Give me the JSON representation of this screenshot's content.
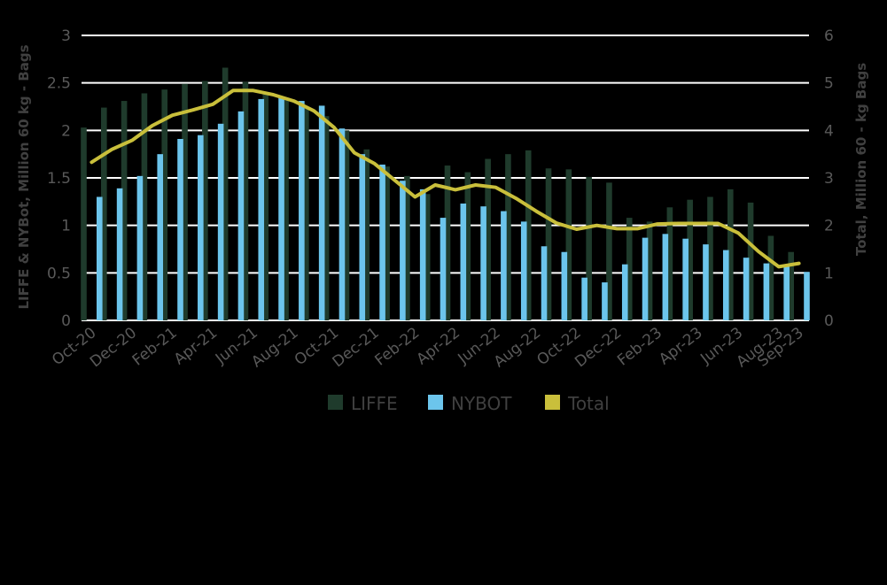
{
  "chart_data": {
    "type": "bar",
    "x": [
      "Oct-20",
      "Nov-20",
      "Dec-20",
      "Jan-21",
      "Feb-21",
      "Mar-21",
      "Apr-21",
      "May-21",
      "Jun-21",
      "Jul-21",
      "Aug-21",
      "Sep-21",
      "Oct-21",
      "Nov-21",
      "Dec-21",
      "Jan-22",
      "Feb-22",
      "Mar-22",
      "Apr-22",
      "May-22",
      "Jun-22",
      "Jul-22",
      "Aug-22",
      "Sep-22",
      "Oct-22",
      "Nov-22",
      "Dec-22",
      "Jan-23",
      "Feb-23",
      "Mar-23",
      "Apr-23",
      "May-23",
      "Jun-23",
      "Jul-23",
      "Aug-23",
      "Sep-23"
    ],
    "x_tick_labels": [
      "Oct-20",
      "Dec-20",
      "Feb-21",
      "Apr-21",
      "Jun-21",
      "Aug-21",
      "Oct-21",
      "Dec-21",
      "Feb-22",
      "Apr-22",
      "Jun-22",
      "Aug-22",
      "Oct-22",
      "Dec-22",
      "Feb-23",
      "Apr-23",
      "Jun-23",
      "Aug-23",
      "Sep-23"
    ],
    "series": [
      {
        "name": "LIFFE",
        "type": "bar",
        "axis": "left",
        "color": "#1f3b2c",
        "values": [
          2.03,
          2.24,
          2.31,
          2.39,
          2.43,
          2.49,
          2.52,
          2.66,
          2.51,
          2.38,
          2.32,
          2.25,
          2.15,
          2.0,
          1.8,
          1.62,
          1.52,
          1.33,
          1.63,
          1.56,
          1.7,
          1.75,
          1.79,
          1.6,
          1.59,
          1.51,
          1.45,
          1.08,
          1.04,
          1.19,
          1.27,
          1.3,
          1.38,
          1.24,
          0.89,
          0.72
        ]
      },
      {
        "name": "NYBOT",
        "type": "bar",
        "axis": "left",
        "color": "#6cc5ec",
        "values": [
          1.3,
          1.39,
          1.52,
          1.75,
          1.91,
          1.95,
          2.07,
          2.2,
          2.33,
          2.35,
          2.31,
          2.26,
          2.02,
          1.75,
          1.64,
          1.47,
          1.38,
          1.08,
          1.23,
          1.2,
          1.15,
          1.04,
          0.78,
          0.72,
          0.45,
          0.4,
          0.59,
          0.87,
          0.91,
          0.86,
          0.8,
          0.74,
          0.66,
          0.6,
          0.59,
          0.51
        ]
      },
      {
        "name": "Total",
        "type": "line",
        "axis": "right",
        "color": "#c9bf3b",
        "values": [
          3.33,
          3.6,
          3.79,
          4.1,
          4.32,
          4.43,
          4.55,
          4.84,
          4.84,
          4.75,
          4.62,
          4.41,
          4.06,
          3.53,
          3.3,
          2.95,
          2.6,
          2.85,
          2.75,
          2.85,
          2.8,
          2.57,
          2.3,
          2.05,
          1.92,
          2.0,
          1.93,
          1.93,
          2.03,
          2.04,
          2.04,
          2.04,
          1.84,
          1.45,
          1.13,
          1.2
        ]
      }
    ],
    "ylabel": "LIFFE & NYBot, Million 60 kg - Bags",
    "y2label": "Total, Million 60 - kg Bags",
    "ylim": [
      0,
      3
    ],
    "yticks": [
      "0",
      "0.5",
      "1",
      "1.5",
      "2",
      "2.5",
      "3"
    ],
    "y2lim": [
      0,
      6
    ],
    "y2ticks": [
      "0",
      "1",
      "2",
      "3",
      "4",
      "5",
      "6"
    ],
    "grid": true,
    "legend_position": "bottom"
  }
}
